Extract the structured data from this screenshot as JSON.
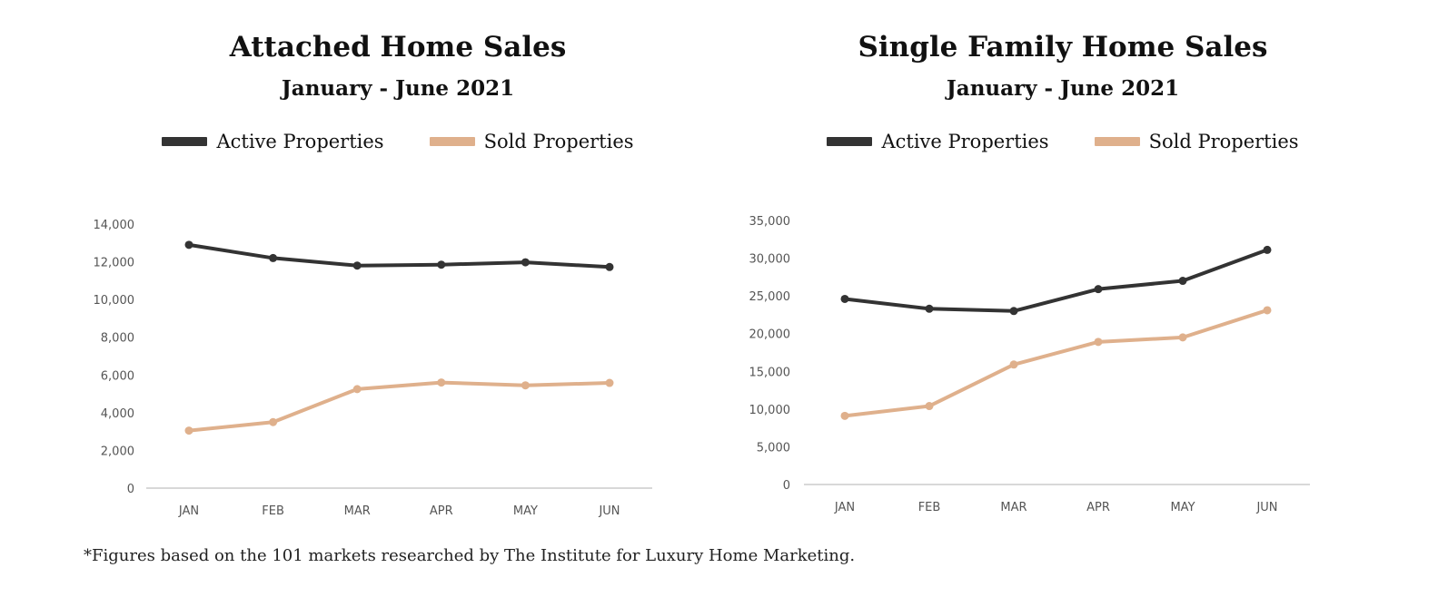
{
  "chart_data": [
    {
      "type": "line",
      "title": "Attached Home Sales",
      "subtitle": "January - June 2021",
      "categories": [
        "JAN",
        "FEB",
        "MAR",
        "APR",
        "MAY",
        "JUN"
      ],
      "series": [
        {
          "name": "Active Properties",
          "color": "#333333",
          "values": [
            12900,
            12200,
            11800,
            11850,
            11975,
            11725
          ]
        },
        {
          "name": "Sold Properties",
          "color": "#dfb08c",
          "values": [
            3050,
            3500,
            5250,
            5600,
            5450,
            5580
          ]
        }
      ],
      "ylim": [
        0,
        14000
      ],
      "yticks": [
        "0",
        "2,000",
        "4,000",
        "6,000",
        "8,000",
        "10,000",
        "12,000",
        "14,000"
      ],
      "grid": false,
      "legend_position": "top"
    },
    {
      "type": "line",
      "title": "Single Family Home Sales",
      "subtitle": "January - June 2021",
      "categories": [
        "JAN",
        "FEB",
        "MAR",
        "APR",
        "MAY",
        "JUN"
      ],
      "series": [
        {
          "name": "Active Properties",
          "color": "#333333",
          "values": [
            24600,
            23300,
            23000,
            25900,
            27000,
            31100
          ]
        },
        {
          "name": "Sold Properties",
          "color": "#dfb08c",
          "values": [
            9100,
            10400,
            15900,
            18900,
            19500,
            23100
          ]
        }
      ],
      "ylim": [
        0,
        35000
      ],
      "yticks": [
        "0",
        "5,000",
        "10,000",
        "15,000",
        "20,000",
        "25,000",
        "30,000",
        "35,000"
      ],
      "grid": false,
      "legend_position": "top"
    }
  ],
  "footnote": "*Figures based on the 101 markets researched by The Institute for Luxury Home Marketing."
}
